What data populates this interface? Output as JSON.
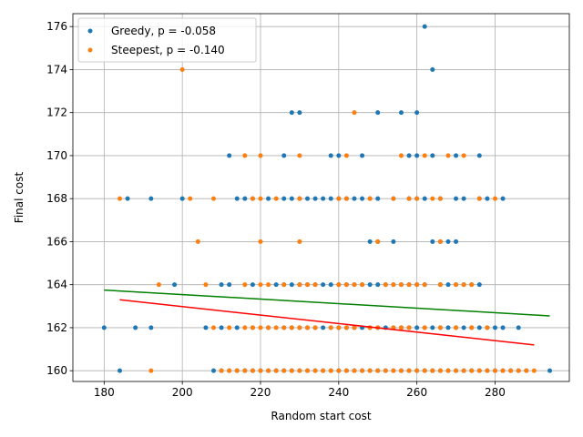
{
  "chart_data": {
    "type": "scatter",
    "xlabel": "Random start cost",
    "ylabel": "Final cost",
    "xlim": [
      172,
      299
    ],
    "ylim": [
      159.5,
      176.6
    ],
    "xticks": [
      180,
      200,
      220,
      240,
      260,
      280
    ],
    "yticks": [
      160,
      162,
      164,
      166,
      168,
      170,
      172,
      174,
      176
    ],
    "grid": true,
    "legend_position": "top-left",
    "series": [
      {
        "name": "Greedy, p = -0.058",
        "color": "#1f77b4",
        "points": [
          [
            262,
            176
          ],
          [
            264,
            174
          ],
          [
            228,
            172
          ],
          [
            230,
            172
          ],
          [
            250,
            172
          ],
          [
            256,
            172
          ],
          [
            260,
            172
          ],
          [
            212,
            170
          ],
          [
            226,
            170
          ],
          [
            238,
            170
          ],
          [
            240,
            170
          ],
          [
            246,
            170
          ],
          [
            258,
            170
          ],
          [
            260,
            170
          ],
          [
            264,
            170
          ],
          [
            270,
            170
          ],
          [
            276,
            170
          ],
          [
            186,
            168
          ],
          [
            192,
            168
          ],
          [
            200,
            168
          ],
          [
            214,
            168
          ],
          [
            216,
            168
          ],
          [
            218,
            168
          ],
          [
            222,
            168
          ],
          [
            226,
            168
          ],
          [
            228,
            168
          ],
          [
            230,
            168
          ],
          [
            232,
            168
          ],
          [
            234,
            168
          ],
          [
            236,
            168
          ],
          [
            238,
            168
          ],
          [
            240,
            168
          ],
          [
            242,
            168
          ],
          [
            244,
            168
          ],
          [
            246,
            168
          ],
          [
            248,
            168
          ],
          [
            250,
            168
          ],
          [
            254,
            168
          ],
          [
            258,
            168
          ],
          [
            260,
            168
          ],
          [
            262,
            168
          ],
          [
            266,
            168
          ],
          [
            270,
            168
          ],
          [
            272,
            168
          ],
          [
            276,
            168
          ],
          [
            278,
            168
          ],
          [
            282,
            168
          ],
          [
            248,
            166
          ],
          [
            250,
            166
          ],
          [
            254,
            166
          ],
          [
            264,
            166
          ],
          [
            266,
            166
          ],
          [
            268,
            166
          ],
          [
            270,
            166
          ],
          [
            198,
            164
          ],
          [
            210,
            164
          ],
          [
            212,
            164
          ],
          [
            218,
            164
          ],
          [
            224,
            164
          ],
          [
            226,
            164
          ],
          [
            228,
            164
          ],
          [
            230,
            164
          ],
          [
            232,
            164
          ],
          [
            234,
            164
          ],
          [
            236,
            164
          ],
          [
            238,
            164
          ],
          [
            240,
            164
          ],
          [
            242,
            164
          ],
          [
            244,
            164
          ],
          [
            246,
            164
          ],
          [
            248,
            164
          ],
          [
            250,
            164
          ],
          [
            252,
            164
          ],
          [
            254,
            164
          ],
          [
            256,
            164
          ],
          [
            258,
            164
          ],
          [
            260,
            164
          ],
          [
            262,
            164
          ],
          [
            266,
            164
          ],
          [
            268,
            164
          ],
          [
            270,
            164
          ],
          [
            272,
            164
          ],
          [
            274,
            164
          ],
          [
            276,
            164
          ],
          [
            180,
            162
          ],
          [
            188,
            162
          ],
          [
            192,
            162
          ],
          [
            206,
            162
          ],
          [
            210,
            162
          ],
          [
            214,
            162
          ],
          [
            218,
            162
          ],
          [
            222,
            162
          ],
          [
            226,
            162
          ],
          [
            228,
            162
          ],
          [
            230,
            162
          ],
          [
            232,
            162
          ],
          [
            234,
            162
          ],
          [
            236,
            162
          ],
          [
            238,
            162
          ],
          [
            240,
            162
          ],
          [
            242,
            162
          ],
          [
            244,
            162
          ],
          [
            246,
            162
          ],
          [
            248,
            162
          ],
          [
            250,
            162
          ],
          [
            252,
            162
          ],
          [
            254,
            162
          ],
          [
            256,
            162
          ],
          [
            258,
            162
          ],
          [
            260,
            162
          ],
          [
            262,
            162
          ],
          [
            264,
            162
          ],
          [
            266,
            162
          ],
          [
            268,
            162
          ],
          [
            270,
            162
          ],
          [
            272,
            162
          ],
          [
            274,
            162
          ],
          [
            276,
            162
          ],
          [
            278,
            162
          ],
          [
            280,
            162
          ],
          [
            282,
            162
          ],
          [
            286,
            162
          ],
          [
            184,
            160
          ],
          [
            208,
            160
          ],
          [
            210,
            160
          ],
          [
            212,
            160
          ],
          [
            214,
            160
          ],
          [
            216,
            160
          ],
          [
            218,
            160
          ],
          [
            220,
            160
          ],
          [
            222,
            160
          ],
          [
            224,
            160
          ],
          [
            226,
            160
          ],
          [
            228,
            160
          ],
          [
            230,
            160
          ],
          [
            232,
            160
          ],
          [
            234,
            160
          ],
          [
            236,
            160
          ],
          [
            238,
            160
          ],
          [
            240,
            160
          ],
          [
            242,
            160
          ],
          [
            244,
            160
          ],
          [
            246,
            160
          ],
          [
            248,
            160
          ],
          [
            250,
            160
          ],
          [
            252,
            160
          ],
          [
            254,
            160
          ],
          [
            256,
            160
          ],
          [
            258,
            160
          ],
          [
            260,
            160
          ],
          [
            262,
            160
          ],
          [
            264,
            160
          ],
          [
            266,
            160
          ],
          [
            268,
            160
          ],
          [
            270,
            160
          ],
          [
            272,
            160
          ],
          [
            274,
            160
          ],
          [
            276,
            160
          ],
          [
            278,
            160
          ],
          [
            280,
            160
          ],
          [
            282,
            160
          ],
          [
            284,
            160
          ],
          [
            286,
            160
          ],
          [
            288,
            160
          ],
          [
            294,
            160
          ]
        ],
        "trend": [
          [
            180,
            163.75
          ],
          [
            294,
            162.55
          ]
        ],
        "trend_color": "#008000"
      },
      {
        "name": "Steepest, p = -0.140",
        "color": "#ff7f0e",
        "points": [
          [
            200,
            174
          ],
          [
            244,
            172
          ],
          [
            216,
            170
          ],
          [
            220,
            170
          ],
          [
            230,
            170
          ],
          [
            242,
            170
          ],
          [
            256,
            170
          ],
          [
            262,
            170
          ],
          [
            268,
            170
          ],
          [
            272,
            170
          ],
          [
            184,
            168
          ],
          [
            202,
            168
          ],
          [
            208,
            168
          ],
          [
            218,
            168
          ],
          [
            220,
            168
          ],
          [
            224,
            168
          ],
          [
            230,
            168
          ],
          [
            240,
            168
          ],
          [
            242,
            168
          ],
          [
            248,
            168
          ],
          [
            254,
            168
          ],
          [
            258,
            168
          ],
          [
            260,
            168
          ],
          [
            264,
            168
          ],
          [
            266,
            168
          ],
          [
            276,
            168
          ],
          [
            280,
            168
          ],
          [
            204,
            166
          ],
          [
            220,
            166
          ],
          [
            230,
            166
          ],
          [
            250,
            166
          ],
          [
            266,
            166
          ],
          [
            194,
            164
          ],
          [
            206,
            164
          ],
          [
            216,
            164
          ],
          [
            220,
            164
          ],
          [
            222,
            164
          ],
          [
            226,
            164
          ],
          [
            230,
            164
          ],
          [
            232,
            164
          ],
          [
            234,
            164
          ],
          [
            240,
            164
          ],
          [
            242,
            164
          ],
          [
            244,
            164
          ],
          [
            246,
            164
          ],
          [
            252,
            164
          ],
          [
            254,
            164
          ],
          [
            256,
            164
          ],
          [
            258,
            164
          ],
          [
            260,
            164
          ],
          [
            262,
            164
          ],
          [
            266,
            164
          ],
          [
            270,
            164
          ],
          [
            272,
            164
          ],
          [
            274,
            164
          ],
          [
            208,
            162
          ],
          [
            212,
            162
          ],
          [
            216,
            162
          ],
          [
            218,
            162
          ],
          [
            220,
            162
          ],
          [
            222,
            162
          ],
          [
            224,
            162
          ],
          [
            226,
            162
          ],
          [
            228,
            162
          ],
          [
            230,
            162
          ],
          [
            232,
            162
          ],
          [
            234,
            162
          ],
          [
            238,
            162
          ],
          [
            240,
            162
          ],
          [
            242,
            162
          ],
          [
            244,
            162
          ],
          [
            248,
            162
          ],
          [
            250,
            162
          ],
          [
            254,
            162
          ],
          [
            256,
            162
          ],
          [
            258,
            162
          ],
          [
            262,
            162
          ],
          [
            266,
            162
          ],
          [
            270,
            162
          ],
          [
            274,
            162
          ],
          [
            278,
            162
          ],
          [
            192,
            160
          ],
          [
            210,
            160
          ],
          [
            212,
            160
          ],
          [
            214,
            160
          ],
          [
            216,
            160
          ],
          [
            218,
            160
          ],
          [
            220,
            160
          ],
          [
            222,
            160
          ],
          [
            224,
            160
          ],
          [
            226,
            160
          ],
          [
            228,
            160
          ],
          [
            230,
            160
          ],
          [
            232,
            160
          ],
          [
            234,
            160
          ],
          [
            236,
            160
          ],
          [
            238,
            160
          ],
          [
            240,
            160
          ],
          [
            242,
            160
          ],
          [
            244,
            160
          ],
          [
            246,
            160
          ],
          [
            248,
            160
          ],
          [
            250,
            160
          ],
          [
            252,
            160
          ],
          [
            254,
            160
          ],
          [
            256,
            160
          ],
          [
            258,
            160
          ],
          [
            260,
            160
          ],
          [
            262,
            160
          ],
          [
            264,
            160
          ],
          [
            266,
            160
          ],
          [
            268,
            160
          ],
          [
            270,
            160
          ],
          [
            272,
            160
          ],
          [
            274,
            160
          ],
          [
            276,
            160
          ],
          [
            278,
            160
          ],
          [
            280,
            160
          ],
          [
            282,
            160
          ],
          [
            284,
            160
          ],
          [
            286,
            160
          ],
          [
            288,
            160
          ],
          [
            290,
            160
          ]
        ],
        "trend": [
          [
            184,
            163.3
          ],
          [
            290,
            161.2
          ]
        ],
        "trend_color": "#ff0000"
      }
    ]
  }
}
